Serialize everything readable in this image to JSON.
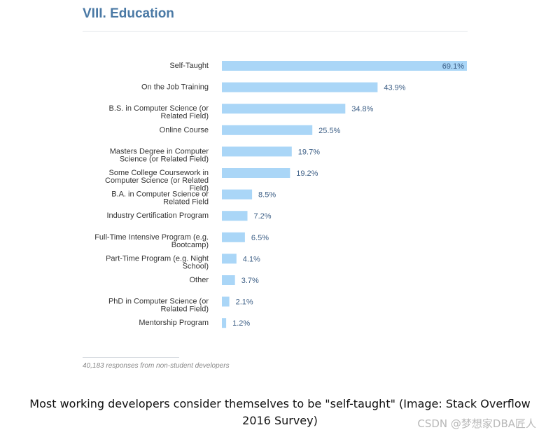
{
  "section_title": "VIII. Education",
  "chart_data": {
    "type": "bar",
    "orientation": "horizontal",
    "categories": [
      [
        "Self-Taught"
      ],
      [
        "On the Job Training"
      ],
      [
        "B.S. in Computer Science (or",
        "Related Field)"
      ],
      [
        "Online Course"
      ],
      [
        "Masters Degree in Computer",
        "Science (or Related Field)"
      ],
      [
        "Some College Coursework in",
        "Computer Science (or Related",
        "Field)"
      ],
      [
        "B.A. in Computer Science or",
        "Related Field"
      ],
      [
        "Industry Certification Program"
      ],
      [
        "Full-Time Intensive Program (e.g.",
        "Bootcamp)"
      ],
      [
        "Part-Time Program (e.g. Night",
        "School)"
      ],
      [
        "Other"
      ],
      [
        "PhD in Computer Science (or",
        "Related Field)"
      ],
      [
        "Mentorship Program"
      ]
    ],
    "values": [
      69.1,
      43.9,
      34.8,
      25.5,
      19.7,
      19.2,
      8.5,
      7.2,
      6.5,
      4.1,
      3.7,
      2.1,
      1.2
    ],
    "value_labels": [
      "69.1%",
      "43.9%",
      "34.8%",
      "25.5%",
      "19.7%",
      "19.2%",
      "8.5%",
      "7.2%",
      "6.5%",
      "4.1%",
      "3.7%",
      "2.1%",
      "1.2%"
    ],
    "xlim": [
      0,
      69.1
    ],
    "bar_color": "#aad6f7",
    "value_label_color": "#3d5f86",
    "grid": false
  },
  "footnote": "40,183 responses from non-student developers",
  "caption": "Most working developers consider themselves to be \"self-taught\" (Image: Stack Overflow 2016 Survey)",
  "watermark": "CSDN @梦想家DBA匠人"
}
